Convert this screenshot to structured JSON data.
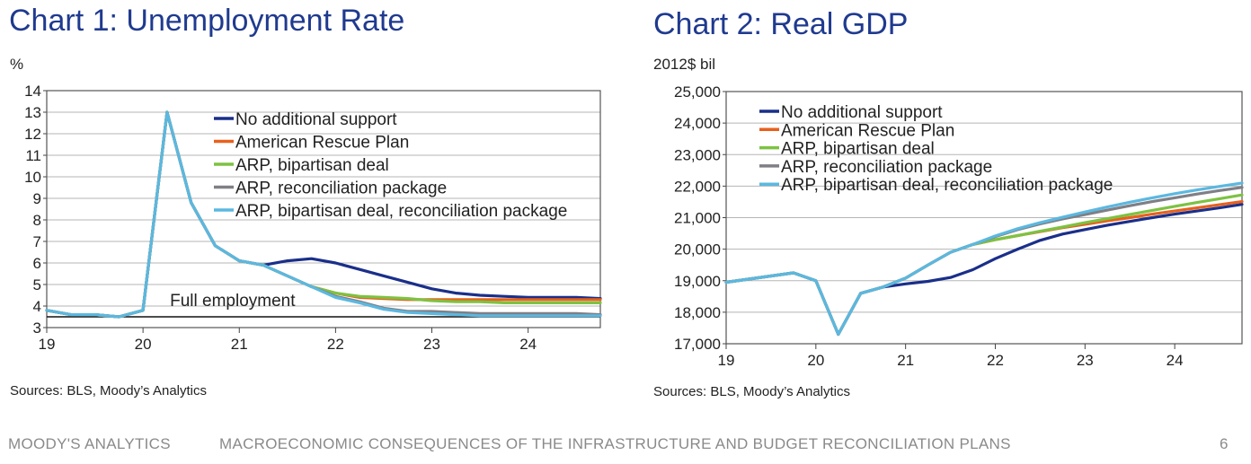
{
  "chart_data": [
    {
      "type": "line",
      "title": "Chart 1: Unemployment Rate",
      "ylabel": "%",
      "xlabel": "",
      "source": "Sources: BLS, Moody’s Analytics",
      "x": [
        19,
        19.25,
        19.5,
        19.75,
        20,
        20.25,
        20.5,
        20.75,
        21,
        21.25,
        21.5,
        21.75,
        22,
        22.25,
        22.5,
        22.75,
        23,
        23.25,
        23.5,
        23.75,
        24,
        24.25,
        24.5,
        24.75
      ],
      "xlim": [
        19,
        24.75
      ],
      "ylim": [
        3,
        14
      ],
      "xticks": [
        {
          "v": 19,
          "label": "19"
        },
        {
          "v": 20,
          "label": "20"
        },
        {
          "v": 21,
          "label": "21"
        },
        {
          "v": 22,
          "label": "22"
        },
        {
          "v": 23,
          "label": "23"
        },
        {
          "v": 24,
          "label": "24"
        }
      ],
      "yticks": [
        {
          "v": 3,
          "label": "3"
        },
        {
          "v": 4,
          "label": "4"
        },
        {
          "v": 5,
          "label": "5"
        },
        {
          "v": 6,
          "label": "6"
        },
        {
          "v": 7,
          "label": "7"
        },
        {
          "v": 8,
          "label": "8"
        },
        {
          "v": 9,
          "label": "9"
        },
        {
          "v": 10,
          "label": "10"
        },
        {
          "v": 11,
          "label": "11"
        },
        {
          "v": 12,
          "label": "12"
        },
        {
          "v": 13,
          "label": "13"
        },
        {
          "v": 14,
          "label": "14"
        }
      ],
      "grid": true,
      "legend_position": "top-right",
      "reference_line": {
        "value": 3.5,
        "label": "Full employment"
      },
      "series": [
        {
          "name": "No additional support",
          "color": "#1a2f8a",
          "values": [
            3.8,
            3.6,
            3.6,
            3.5,
            3.8,
            13.0,
            8.8,
            6.8,
            6.1,
            5.9,
            6.1,
            6.2,
            6.0,
            5.7,
            5.4,
            5.1,
            4.8,
            4.6,
            4.5,
            4.45,
            4.4,
            4.4,
            4.4,
            4.35
          ]
        },
        {
          "name": "American Rescue Plan",
          "color": "#e8601c",
          "values": [
            3.8,
            3.6,
            3.6,
            3.5,
            3.8,
            13.0,
            8.8,
            6.8,
            6.1,
            5.9,
            5.4,
            4.9,
            4.6,
            4.4,
            4.35,
            4.3,
            4.3,
            4.3,
            4.3,
            4.3,
            4.3,
            4.3,
            4.3,
            4.3
          ]
        },
        {
          "name": "ARP, bipartisan deal",
          "color": "#7dc242",
          "values": [
            3.8,
            3.6,
            3.6,
            3.5,
            3.8,
            13.0,
            8.8,
            6.8,
            6.1,
            5.9,
            5.4,
            4.9,
            4.6,
            4.45,
            4.4,
            4.35,
            4.25,
            4.2,
            4.2,
            4.15,
            4.15,
            4.15,
            4.15,
            4.15
          ]
        },
        {
          "name": "ARP, reconciliation package",
          "color": "#7f7f86",
          "values": [
            3.8,
            3.6,
            3.6,
            3.5,
            3.8,
            13.0,
            8.8,
            6.8,
            6.1,
            5.9,
            5.4,
            4.9,
            4.45,
            4.2,
            3.9,
            3.75,
            3.75,
            3.7,
            3.65,
            3.65,
            3.65,
            3.65,
            3.65,
            3.6
          ]
        },
        {
          "name": "ARP, bipartisan deal, reconciliation package",
          "color": "#5bb8e0",
          "values": [
            3.8,
            3.6,
            3.6,
            3.5,
            3.8,
            13.0,
            8.8,
            6.8,
            6.1,
            5.9,
            5.4,
            4.9,
            4.4,
            4.15,
            3.85,
            3.7,
            3.65,
            3.6,
            3.55,
            3.55,
            3.55,
            3.55,
            3.55,
            3.55
          ]
        }
      ]
    },
    {
      "type": "line",
      "title": "Chart 2: Real GDP",
      "ylabel": "2012$ bil",
      "xlabel": "",
      "source": "Sources: BLS, Moody’s Analytics",
      "x": [
        19,
        19.25,
        19.5,
        19.75,
        20,
        20.25,
        20.5,
        20.75,
        21,
        21.25,
        21.5,
        21.75,
        22,
        22.25,
        22.5,
        22.75,
        23,
        23.25,
        23.5,
        23.75,
        24,
        24.25,
        24.5,
        24.75
      ],
      "xlim": [
        19,
        24.75
      ],
      "ylim": [
        17000,
        25000
      ],
      "xticks": [
        {
          "v": 19,
          "label": "19"
        },
        {
          "v": 20,
          "label": "20"
        },
        {
          "v": 21,
          "label": "21"
        },
        {
          "v": 22,
          "label": "22"
        },
        {
          "v": 23,
          "label": "23"
        },
        {
          "v": 24,
          "label": "24"
        }
      ],
      "yticks": [
        {
          "v": 17000,
          "label": "17,000"
        },
        {
          "v": 18000,
          "label": "18,000"
        },
        {
          "v": 19000,
          "label": "19,000"
        },
        {
          "v": 20000,
          "label": "20,000"
        },
        {
          "v": 21000,
          "label": "21,000"
        },
        {
          "v": 22000,
          "label": "22,000"
        },
        {
          "v": 23000,
          "label": "23,000"
        },
        {
          "v": 24000,
          "label": "24,000"
        },
        {
          "v": 25000,
          "label": "25,000"
        }
      ],
      "grid": true,
      "legend_position": "top-left",
      "series": [
        {
          "name": "No additional support",
          "color": "#1a2f8a",
          "values": [
            18950,
            19050,
            19150,
            19250,
            19000,
            17300,
            18600,
            18800,
            18900,
            18980,
            19100,
            19350,
            19700,
            20000,
            20280,
            20480,
            20620,
            20760,
            20880,
            21000,
            21110,
            21210,
            21310,
            21420
          ]
        },
        {
          "name": "American Rescue Plan",
          "color": "#e8601c",
          "values": [
            18950,
            19050,
            19150,
            19250,
            19000,
            17300,
            18600,
            18800,
            19080,
            19500,
            19900,
            20150,
            20300,
            20430,
            20560,
            20680,
            20790,
            20900,
            21000,
            21110,
            21210,
            21310,
            21410,
            21510
          ]
        },
        {
          "name": "ARP, bipartisan deal",
          "color": "#7dc242",
          "values": [
            18950,
            19050,
            19150,
            19250,
            19000,
            17300,
            18600,
            18800,
            19080,
            19500,
            19900,
            20150,
            20300,
            20430,
            20570,
            20700,
            20840,
            20970,
            21100,
            21230,
            21360,
            21480,
            21600,
            21720
          ]
        },
        {
          "name": "ARP, reconciliation package",
          "color": "#7f7f86",
          "values": [
            18950,
            19050,
            19150,
            19250,
            19000,
            17300,
            18600,
            18800,
            19080,
            19500,
            19900,
            20150,
            20400,
            20620,
            20800,
            20960,
            21100,
            21240,
            21380,
            21510,
            21630,
            21750,
            21860,
            21960
          ]
        },
        {
          "name": "ARP, bipartisan deal, reconciliation package",
          "color": "#5bb8e0",
          "values": [
            18950,
            19050,
            19150,
            19250,
            19000,
            17300,
            18600,
            18800,
            19080,
            19500,
            19900,
            20150,
            20420,
            20650,
            20840,
            21010,
            21180,
            21340,
            21490,
            21630,
            21760,
            21880,
            21990,
            22100
          ]
        }
      ]
    }
  ],
  "footer": {
    "brand": "MOODY'S ANALYTICS",
    "report_title": "MACROECONOMIC CONSEQUENCES OF THE INFRASTRUCTURE AND BUDGET RECONCILIATION PLANS",
    "page_number": "6"
  }
}
